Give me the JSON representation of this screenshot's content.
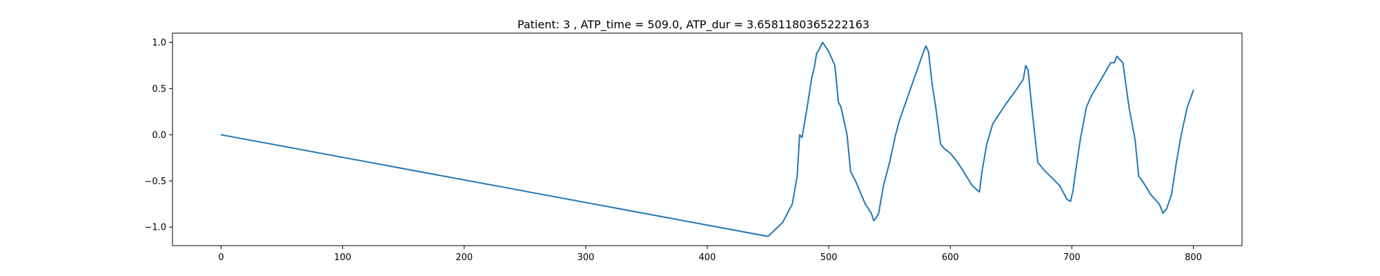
{
  "chart_data": {
    "type": "line",
    "title": "Patient: 3 , ATP_time = 509.0, ATP_dur = 3.6581180365222163",
    "xlabel": "",
    "ylabel": "",
    "xlim": [
      -40,
      840
    ],
    "ylim": [
      -1.2,
      1.1
    ],
    "grid": false,
    "xticks": [
      0,
      100,
      200,
      300,
      400,
      500,
      600,
      700,
      800
    ],
    "yticks": [
      -1.0,
      -0.5,
      0.0,
      0.5,
      1.0
    ],
    "xtick_labels": [
      "0",
      "100",
      "200",
      "300",
      "400",
      "500",
      "600",
      "700",
      "800"
    ],
    "ytick_labels": [
      "−1.0",
      "−0.5",
      "0.0",
      "0.5",
      "1.0"
    ],
    "series": [
      {
        "color": "#1f77b4",
        "x": [
          0,
          450,
          462,
          470,
          474,
          476,
          478,
          482,
          486,
          488,
          490,
          492,
          495,
          500,
          505,
          508,
          510,
          515,
          518,
          522,
          530,
          535,
          537,
          539,
          541,
          545,
          550,
          555,
          558,
          562,
          570,
          578,
          580,
          582,
          585,
          588,
          592,
          595,
          600,
          605,
          610,
          618,
          624,
          626,
          630,
          635,
          645,
          655,
          660,
          662,
          664,
          667,
          672,
          677,
          690,
          696,
          699,
          701,
          703,
          707,
          712,
          716,
          725,
          732,
          735,
          737,
          739,
          742,
          747,
          752,
          755,
          758,
          765,
          772,
          775,
          778,
          782,
          786,
          790,
          795,
          800
        ],
        "y": [
          0.0,
          -1.1,
          -0.95,
          -0.75,
          -0.45,
          0.0,
          -0.03,
          0.28,
          0.62,
          0.72,
          0.88,
          0.92,
          1.0,
          0.9,
          0.75,
          0.35,
          0.3,
          0.0,
          -0.4,
          -0.5,
          -0.75,
          -0.85,
          -0.93,
          -0.9,
          -0.85,
          -0.55,
          -0.3,
          0.0,
          0.15,
          0.3,
          0.6,
          0.9,
          0.96,
          0.9,
          0.55,
          0.3,
          -0.1,
          -0.15,
          -0.2,
          -0.28,
          -0.38,
          -0.55,
          -0.62,
          -0.4,
          -0.1,
          0.12,
          0.32,
          0.5,
          0.6,
          0.75,
          0.7,
          0.3,
          -0.3,
          -0.38,
          -0.55,
          -0.7,
          -0.72,
          -0.6,
          -0.4,
          -0.05,
          0.3,
          0.42,
          0.62,
          0.78,
          0.78,
          0.85,
          0.82,
          0.78,
          0.3,
          -0.05,
          -0.45,
          -0.5,
          -0.65,
          -0.75,
          -0.85,
          -0.8,
          -0.65,
          -0.3,
          0.0,
          0.3,
          0.48
        ]
      }
    ]
  }
}
